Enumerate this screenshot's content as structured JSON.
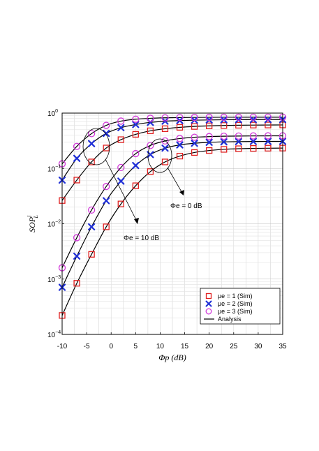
{
  "chart_data": {
    "type": "line",
    "xlabel": "Φp  (dB)",
    "ylabel": "SOP",
    "ylabel_sup": "l",
    "ylabel_sub": "L",
    "xlim": [
      -10,
      35
    ],
    "ylim": [
      0.0001,
      1
    ],
    "yscale": "log",
    "grid": true,
    "legend_position": "bottom-right",
    "x_ticks": [
      -10,
      -5,
      0,
      5,
      10,
      15,
      20,
      25,
      30,
      35
    ],
    "x_tick_labels": [
      "-10",
      "-5",
      "0",
      "5",
      "10",
      "15",
      "20",
      "25",
      "30",
      "35"
    ],
    "y_ticks": [
      {
        "value": 1,
        "base": "10",
        "exp": "0"
      },
      {
        "value": 0.1,
        "base": "10",
        "exp": "−1"
      },
      {
        "value": 0.01,
        "base": "10",
        "exp": "−2"
      },
      {
        "value": 0.001,
        "base": "10",
        "exp": "−3"
      },
      {
        "value": 0.0001,
        "base": "10",
        "exp": "−4"
      }
    ],
    "legend": [
      {
        "label": "μe = 1 (Sim)",
        "marker": "square",
        "color": "#e02020"
      },
      {
        "label": "μe = 2 (Sim)",
        "marker": "x",
        "color": "#1f2fd6"
      },
      {
        "label": "μe = 3 (Sim)",
        "marker": "circle",
        "color": "#d23ad9"
      },
      {
        "label": "Analysis",
        "marker": "line",
        "color": "#000000"
      }
    ],
    "annotations": [
      {
        "text": "Φe  = 0 dB"
      },
      {
        "text": "Φe   = 10 dB"
      }
    ],
    "series": [
      {
        "group": "Φe = 0 dB",
        "marker": "square",
        "color": "#e02020",
        "x": [
          -10,
          -7,
          -4,
          -1,
          2,
          5,
          8,
          11,
          14,
          17,
          20,
          23,
          26,
          29,
          32,
          35
        ],
        "values": [
          0.0263,
          0.0616,
          0.131,
          0.234,
          0.331,
          0.413,
          0.478,
          0.522,
          0.553,
          0.574,
          0.588,
          0.597,
          0.603,
          0.607,
          0.609,
          0.611
        ]
      },
      {
        "group": "Φe = 0 dB",
        "marker": "x",
        "color": "#1f2fd6",
        "x": [
          -10,
          -7,
          -4,
          -1,
          2,
          5,
          8,
          11,
          14,
          17,
          20,
          23,
          26,
          29,
          32,
          35
        ],
        "values": [
          0.0615,
          0.152,
          0.281,
          0.43,
          0.545,
          0.622,
          0.679,
          0.714,
          0.733,
          0.745,
          0.752,
          0.757,
          0.76,
          0.762,
          0.763,
          0.764
        ]
      },
      {
        "group": "Φe = 0 dB",
        "marker": "circle",
        "color": "#d23ad9",
        "x": [
          -10,
          -7,
          -4,
          -1,
          2,
          5,
          8,
          11,
          14,
          17,
          20,
          23,
          26,
          29,
          32,
          35
        ],
        "values": [
          0.121,
          0.25,
          0.426,
          0.6,
          0.717,
          0.774,
          0.806,
          0.822,
          0.831,
          0.836,
          0.839,
          0.841,
          0.842,
          0.843,
          0.843,
          0.843
        ]
      },
      {
        "group": "Φe = 10 dB",
        "marker": "square",
        "color": "#e02020",
        "x": [
          -10,
          -7,
          -4,
          -1,
          2,
          5,
          8,
          11,
          14,
          17,
          20,
          23,
          26,
          29,
          32,
          35
        ],
        "values": [
          0.00022,
          0.00084,
          0.0028,
          0.0088,
          0.0228,
          0.0486,
          0.0876,
          0.131,
          0.167,
          0.194,
          0.211,
          0.221,
          0.227,
          0.23,
          0.232,
          0.233
        ]
      },
      {
        "group": "Φe = 10 dB",
        "marker": "x",
        "color": "#1f2fd6",
        "x": [
          -10,
          -7,
          -4,
          -1,
          2,
          5,
          8,
          11,
          14,
          17,
          20,
          23,
          26,
          29,
          32,
          35
        ],
        "values": [
          0.00071,
          0.0026,
          0.0088,
          0.0261,
          0.059,
          0.113,
          0.178,
          0.233,
          0.266,
          0.285,
          0.296,
          0.302,
          0.305,
          0.307,
          0.308,
          0.308
        ]
      },
      {
        "group": "Φe = 10 dB",
        "marker": "circle",
        "color": "#d23ad9",
        "x": [
          -10,
          -7,
          -4,
          -1,
          2,
          5,
          8,
          11,
          14,
          17,
          20,
          23,
          26,
          29,
          32,
          35
        ],
        "values": [
          0.0016,
          0.0056,
          0.0177,
          0.0472,
          0.104,
          0.185,
          0.26,
          0.314,
          0.347,
          0.366,
          0.376,
          0.382,
          0.385,
          0.387,
          0.388,
          0.388
        ]
      }
    ]
  }
}
